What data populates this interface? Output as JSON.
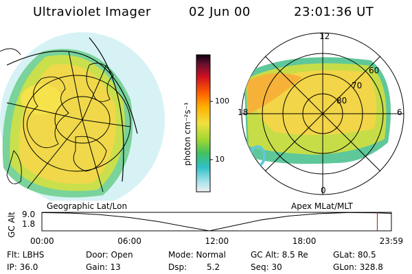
{
  "header": {
    "title": "Ultraviolet Imager",
    "date": "02 Jun 00",
    "time": "23:01:36 UT"
  },
  "left_panel": {
    "caption": "Geographic Lat/Lon"
  },
  "right_panel": {
    "caption": "Apex MLat/MLT",
    "mlt_labels": [
      "12",
      "18",
      "6",
      "0"
    ],
    "lat_labels": [
      "60",
      "70",
      "80"
    ]
  },
  "colorbar": {
    "unit": "photon cm⁻²s⁻¹",
    "ticks": [
      "100",
      "10"
    ]
  },
  "altitude_plot": {
    "ylabel": "GC Alt",
    "y_ticks": [
      "9.0",
      "1.8"
    ],
    "x_ticks": [
      "00:00",
      "06:00",
      "12:00",
      "18:00",
      "23:59"
    ],
    "x_hours": [
      0,
      6,
      12,
      18,
      23.98
    ],
    "ylim": [
      1.8,
      9.0
    ],
    "xlim_hours": [
      0,
      24
    ],
    "curve": {
      "x": [
        0,
        2,
        4,
        6,
        8,
        10,
        11.5,
        13,
        15,
        17,
        19,
        21,
        23,
        24
      ],
      "y": [
        8.9,
        8.7,
        8.1,
        7.0,
        5.4,
        3.3,
        1.8,
        3.6,
        6.0,
        7.6,
        8.5,
        8.9,
        8.8,
        8.6
      ]
    },
    "marker_hours": 23.03,
    "marker_color": "#cc0000"
  },
  "info": {
    "row1": [
      "Flt: LBHS",
      "Door: Open",
      "Mode: Normal",
      "GC Alt: 8.5 Re",
      "GLat: 80.5"
    ],
    "row2": [
      "IP: 36.0",
      "Gain: 13",
      "Dsp:",
      "5.2",
      "Seq: 30",
      "GLon: 328.8"
    ]
  }
}
